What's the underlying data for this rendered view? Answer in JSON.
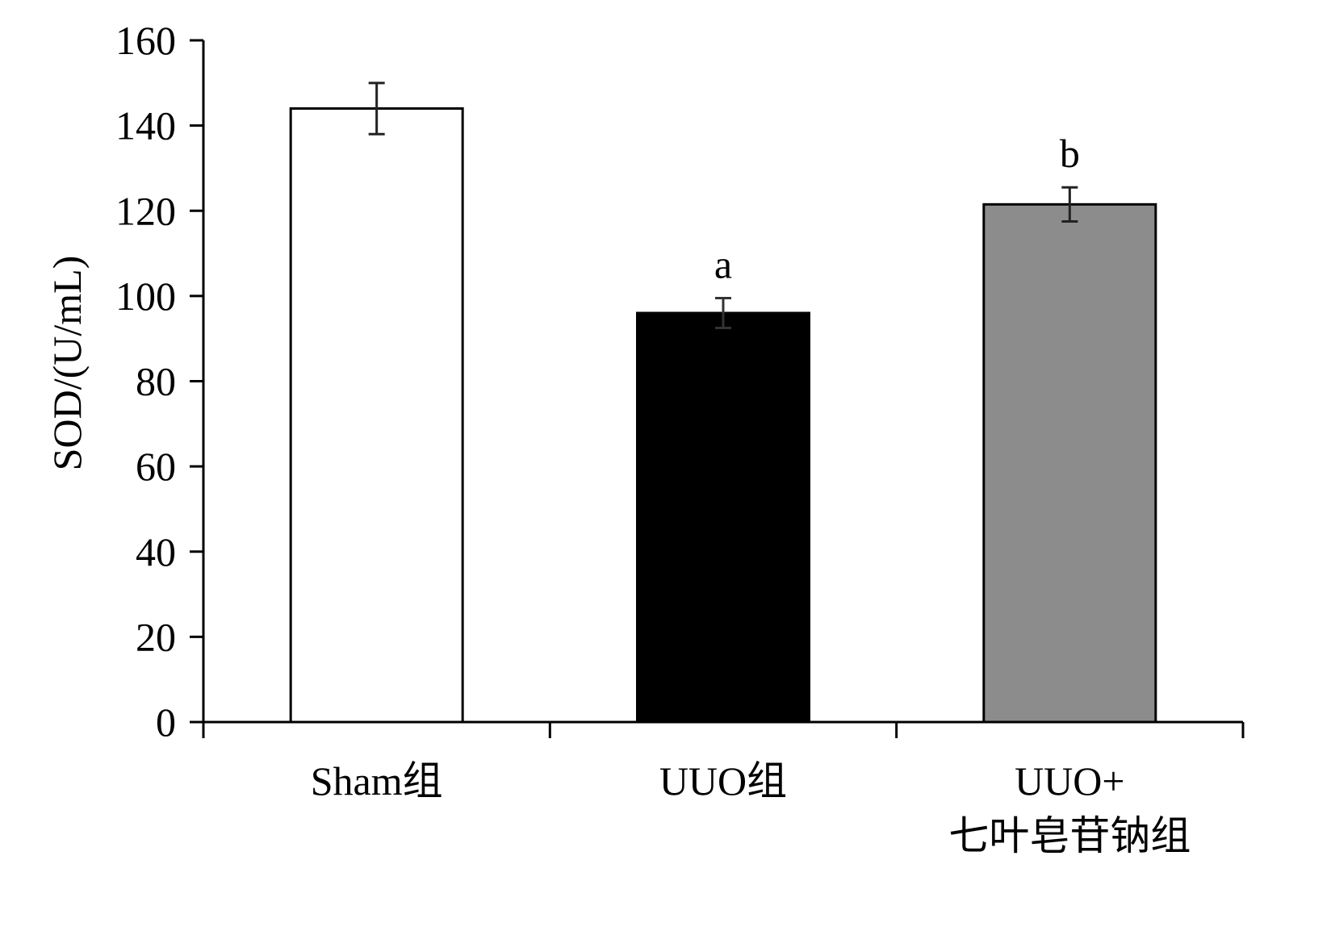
{
  "chart_data": {
    "type": "bar",
    "title": "",
    "xlabel": "",
    "ylabel": "SOD/(U/mL)",
    "ylim": [
      0,
      160
    ],
    "yticks": [
      0,
      20,
      40,
      60,
      80,
      100,
      120,
      140,
      160
    ],
    "grid": false,
    "legend": "none",
    "categories": [
      {
        "lines": [
          "Sham组"
        ]
      },
      {
        "lines": [
          "UUO组"
        ]
      },
      {
        "lines": [
          "UUO+",
          "七叶皂苷钠组"
        ]
      }
    ],
    "values": [
      144,
      96,
      121.5
    ],
    "errors": [
      6,
      3.5,
      4
    ],
    "significance": [
      "",
      "a",
      "b"
    ],
    "bar_colors": [
      "#ffffff",
      "#000000",
      "#8c8c8c"
    ]
  }
}
